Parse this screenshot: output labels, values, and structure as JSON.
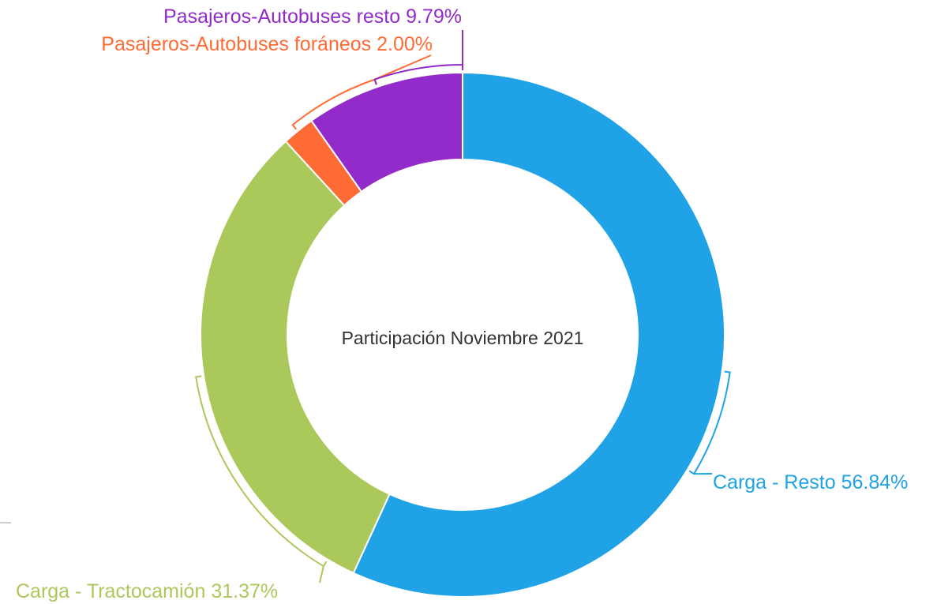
{
  "chart_data": {
    "type": "donut",
    "title": "Participación Noviembre 2021",
    "categories": [
      "Carga - Resto",
      "Carga - Tractocamión",
      "Pasajeros-Autobuses foráneos",
      "Pasajeros-Autobuses resto"
    ],
    "values": [
      56.84,
      31.37,
      2.0,
      9.79
    ],
    "value_labels": [
      "56.84%",
      "31.37%",
      "2.00%",
      "9.79%"
    ],
    "colors": [
      "#1fa2e6",
      "#abc85a",
      "#ff6b35",
      "#922bc9"
    ]
  }
}
